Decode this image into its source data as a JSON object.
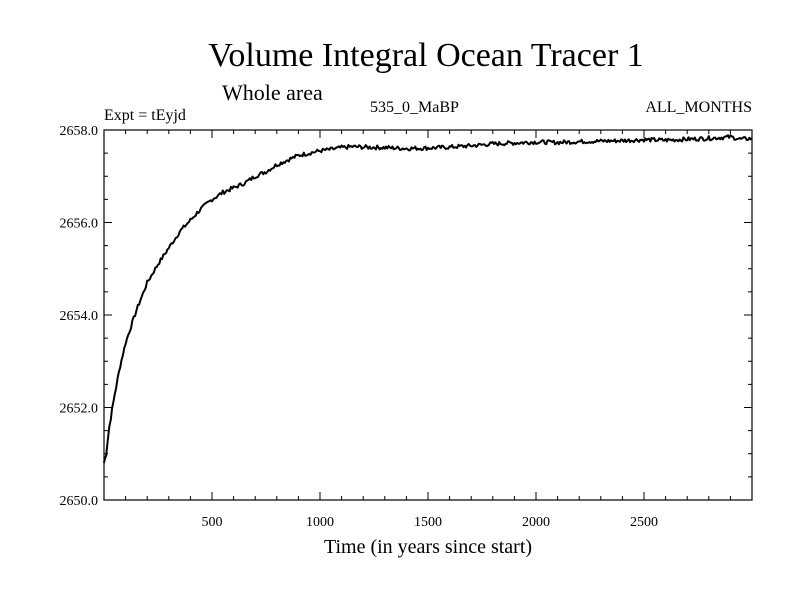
{
  "title": "Volume Integral Ocean Tracer 1",
  "subtitle": "Whole area",
  "meta": {
    "expt": "Expt = tEyjd",
    "period": "535_0_MaBP",
    "months": "ALL_MONTHS"
  },
  "chart_data": {
    "type": "line",
    "title": "Volume Integral Ocean Tracer 1",
    "subtitle": "Whole area",
    "xlabel": "Time (in years since start)",
    "ylabel": "",
    "xlim": [
      0,
      3000
    ],
    "ylim": [
      2650.0,
      2658.0
    ],
    "x_ticks": [
      500,
      1000,
      1500,
      2000,
      2500
    ],
    "x_tick_labels": [
      "500",
      "1000",
      "1500",
      "2000",
      "2500"
    ],
    "y_ticks": [
      2650.0,
      2652.0,
      2654.0,
      2656.0,
      2658.0
    ],
    "y_tick_labels": [
      "2650.0",
      "2652.0",
      "2654.0",
      "2656.0",
      "2658.0"
    ],
    "grid": false,
    "legend": "none",
    "line_color": "#000000",
    "series": [
      {
        "x": [
          0,
          10,
          25,
          50,
          75,
          100,
          150,
          200,
          250,
          300,
          350,
          400,
          450,
          500,
          550,
          600,
          650,
          700,
          750,
          800,
          850,
          900,
          950,
          1000,
          1050,
          1100,
          1150,
          1200,
          1300,
          1400,
          1500,
          1600,
          1700,
          1800,
          1900,
          2000,
          2100,
          2200,
          2300,
          2400,
          2500,
          2600,
          2700,
          2800,
          2900,
          2950,
          3000
        ],
        "values": [
          2650.8,
          2651.0,
          2651.6,
          2652.3,
          2652.9,
          2653.4,
          2654.1,
          2654.7,
          2655.1,
          2655.45,
          2655.8,
          2656.05,
          2656.3,
          2656.5,
          2656.65,
          2656.75,
          2656.85,
          2657.0,
          2657.1,
          2657.25,
          2657.35,
          2657.45,
          2657.5,
          2657.55,
          2657.58,
          2657.62,
          2657.64,
          2657.63,
          2657.62,
          2657.6,
          2657.61,
          2657.63,
          2657.66,
          2657.7,
          2657.72,
          2657.74,
          2657.73,
          2657.75,
          2657.76,
          2657.77,
          2657.79,
          2657.78,
          2657.8,
          2657.82,
          2657.85,
          2657.8,
          2657.82
        ]
      }
    ]
  }
}
